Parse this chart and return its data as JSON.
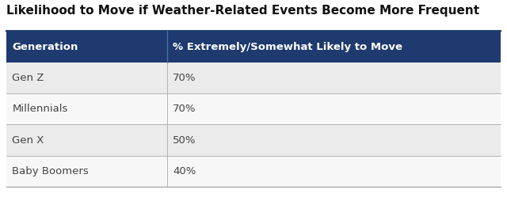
{
  "title": "Likelihood to Move if Weather-Related Events Become More Frequent",
  "col1_header": "Generation",
  "col2_header": "% Extremely/Somewhat Likely to Move",
  "rows": [
    [
      "Gen Z",
      "70%"
    ],
    [
      "Millennials",
      "70%"
    ],
    [
      "Gen X",
      "50%"
    ],
    [
      "Baby Boomers",
      "40%"
    ]
  ],
  "header_bg": "#1e3a6e",
  "header_text_color": "#ffffff",
  "row_bg_odd": "#ebebeb",
  "row_bg_even": "#f7f7f7",
  "row_text_color": "#444444",
  "title_color": "#111111",
  "border_color": "#aaaaaa",
  "fig_bg": "#ffffff",
  "col_split": 0.325,
  "title_fontsize": 11,
  "header_fontsize": 9.5,
  "row_fontsize": 9.5
}
